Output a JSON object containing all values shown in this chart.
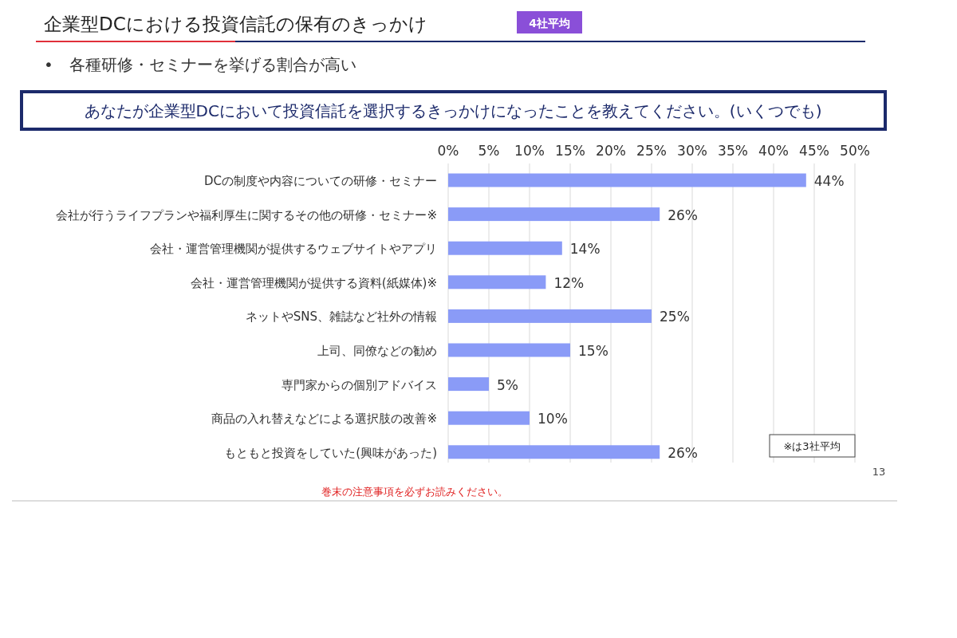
{
  "chart_data": {
    "type": "bar",
    "orientation": "horizontal",
    "title": "企業型DCにおける投資信託の保有のきっかけ",
    "subtitle": "•　各種研修・セミナーを挙げる割合が高い",
    "annotations": [
      "4社平均",
      "あなたが企業型DCにおいて投資信託を選択するきっかけになったことを教えてください。(いくつでも)",
      "※は3社平均",
      "13",
      "巻末の注意事項を必ずお読みください。"
    ],
    "categories": [
      "DCの制度や内容についての研修・セミナー",
      "会社が行うライフプランや福利厚生に関するその他の研修・セミナー※",
      "会社・運営管理機関が提供するウェブサイトやアプリ",
      "会社・運営管理機関が提供する資料(紙媒体)※",
      "ネットやSNS、雑誌など社外の情報",
      "上司、同僚などの勧め",
      "専門家からの個別アドバイス",
      "商品の入れ替えなどによる選択肢の改善※",
      "もともと投資をしていた(興味があった)"
    ],
    "values": [
      44,
      26,
      14,
      12,
      25,
      15,
      5,
      10,
      26
    ],
    "value_labels": [
      "44%",
      "26%",
      "14%",
      "12%",
      "25%",
      "15%",
      "5%",
      "10%",
      "26%"
    ],
    "color": "#8a9bf7",
    "xlim": [
      0,
      50
    ],
    "xticks": [
      {
        "value": 0,
        "label": "0%"
      },
      {
        "value": 5,
        "label": "5%"
      },
      {
        "value": 10,
        "label": "10%"
      },
      {
        "value": 15,
        "label": "15%"
      },
      {
        "value": 20,
        "label": "20%"
      },
      {
        "value": 25,
        "label": "25%"
      },
      {
        "value": 30,
        "label": "30%"
      },
      {
        "value": 35,
        "label": "35%"
      },
      {
        "value": 40,
        "label": "40%"
      },
      {
        "value": 45,
        "label": "45%"
      },
      {
        "value": 50,
        "label": "50%"
      }
    ],
    "grid": "x"
  }
}
